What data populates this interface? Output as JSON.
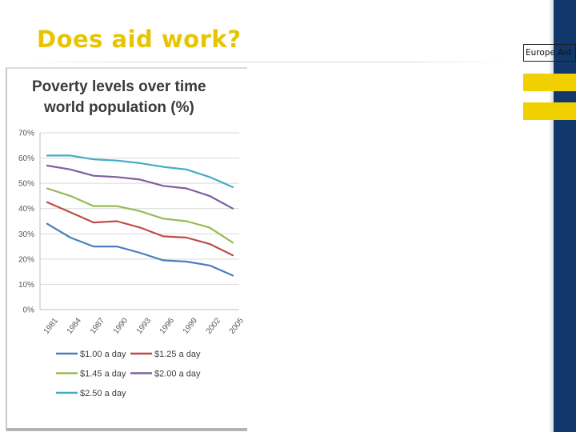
{
  "slide": {
    "title": "Does aid work?",
    "title_color": "#e8c400",
    "brand_label": "Europe.Aid",
    "accent_yellow": "#f0d000",
    "band_color": "#12386b"
  },
  "chart_data": {
    "type": "line",
    "title_lines": [
      "Poverty levels over time",
      "world population (%)"
    ],
    "x": [
      "1981",
      "1984",
      "1987",
      "1990",
      "1993",
      "1996",
      "1999",
      "2002",
      "2005"
    ],
    "yticks": [
      "0%",
      "10%",
      "20%",
      "30%",
      "40%",
      "50%",
      "60%",
      "70%"
    ],
    "ylim": [
      0,
      70
    ],
    "grid": true,
    "legend_position": "bottom",
    "series": [
      {
        "name": "$1.00 a day",
        "color": "#4a7ebb",
        "values": [
          34,
          28.5,
          25,
          25,
          22.5,
          19.5,
          19,
          17.5,
          13.5
        ]
      },
      {
        "name": "$1.25 a day",
        "color": "#be4b48",
        "values": [
          42.5,
          38.5,
          34.5,
          35,
          32.5,
          29,
          28.5,
          26,
          21.5
        ]
      },
      {
        "name": "$1.45 a day",
        "color": "#98b954",
        "values": [
          48,
          45,
          41,
          41,
          39,
          36,
          35,
          32.5,
          26.5
        ]
      },
      {
        "name": "$2.00 a day",
        "color": "#7d60a0",
        "values": [
          57,
          55.5,
          53,
          52.5,
          51.5,
          49,
          48,
          45,
          40
        ]
      },
      {
        "name": "$2.50 a day",
        "color": "#46aac5",
        "values": [
          61,
          61,
          59.5,
          59,
          58,
          56.5,
          55.5,
          52.5,
          48.5
        ]
      }
    ]
  }
}
